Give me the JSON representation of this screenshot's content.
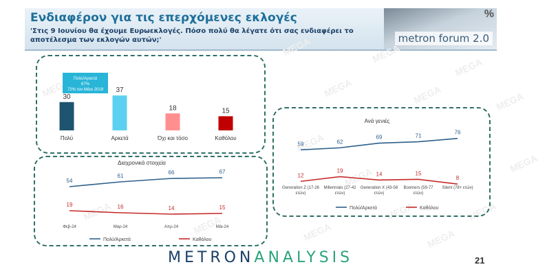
{
  "header": {
    "title": "Ενδιαφέρον για τις επερχόμενες εκλογές",
    "question": "'Στις 9 Ιουνίου θα έχουμε Ευρωεκλογές. Πόσο πολύ θα λέγατε ότι σας ενδιαφέρει το αποτέλεσμα των εκλογών αυτών;'",
    "forum_label": "metron forum 2.0",
    "forum_pct": "%"
  },
  "watermark": "MEGA",
  "footer": {
    "logo_part1": "METRON",
    "logo_part2": "ANALYSIS",
    "page_number": "21"
  },
  "colors": {
    "dark_teal": "#1e5470",
    "light_blue": "#5cd0f0",
    "pink": "#ff8f8f",
    "red": "#c00000",
    "line_blue": "#2c5f8a",
    "line_red": "#c62828",
    "callout": "#29b5d8",
    "panel_border": "#2f6f66"
  },
  "chart_data": [
    {
      "type": "bar",
      "categories": [
        "Πολύ",
        "Αρκετά",
        "Όχι και τόσο",
        "Καθόλου"
      ],
      "values": [
        30,
        37,
        18,
        15
      ],
      "ylim": [
        0,
        40
      ],
      "callout": {
        "line1": "Πολύ/Αρκετά",
        "line2": "67%",
        "line3": "72% τον Μάιο 2019"
      }
    },
    {
      "type": "line",
      "title": "Διαχρονικά στοιχεία",
      "categories": [
        "Φεβ-24",
        "Μαρ-24",
        "Απρ-24",
        "Μάι-24"
      ],
      "series": [
        {
          "name": "Πολύ/Αρκετά",
          "values": [
            54,
            61,
            66,
            67
          ]
        },
        {
          "name": "Καθόλου",
          "values": [
            19,
            16,
            14,
            15
          ]
        }
      ],
      "ylim": [
        0,
        80
      ],
      "legend": "bottom"
    },
    {
      "type": "line",
      "title": "Ανά γενιές",
      "categories": [
        [
          "Generation Z (17-26",
          "ετών)"
        ],
        [
          "Millennials (27-42",
          "ετών)"
        ],
        [
          "Generation X (43-58",
          "ετών)"
        ],
        [
          "Boomers (59-77",
          "ετών)"
        ],
        [
          "Silent (78+ ετών)"
        ]
      ],
      "series": [
        {
          "name": "Πολύ/Αρκετά",
          "values": [
            59,
            62,
            69,
            71,
            76
          ]
        },
        {
          "name": "Καθόλου",
          "values": [
            12,
            19,
            14,
            15,
            8
          ]
        }
      ],
      "ylim": [
        0,
        90
      ],
      "legend": "bottom"
    }
  ]
}
